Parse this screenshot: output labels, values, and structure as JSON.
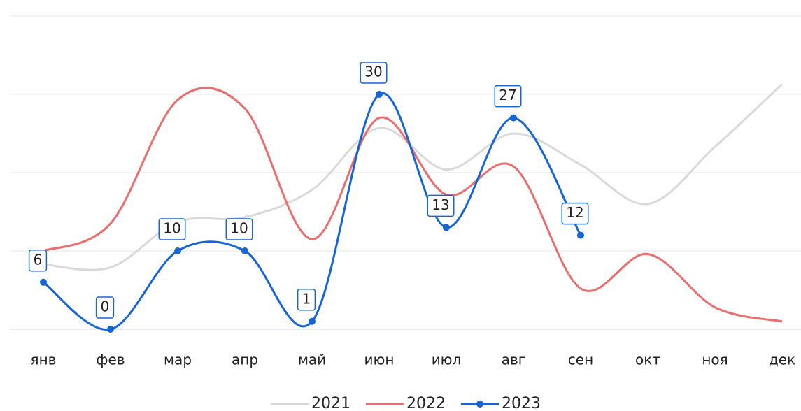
{
  "chart_data": {
    "type": "line",
    "categories": [
      "янв",
      "фев",
      "мар",
      "апр",
      "май",
      "июн",
      "июл",
      "авг",
      "сен",
      "окт",
      "ноя",
      "дек"
    ],
    "series": [
      {
        "name": "2021",
        "color": "#d9d9d9",
        "values": [
          8.3,
          7.9,
          13.7,
          14.3,
          17.8,
          25.7,
          20.4,
          25,
          21,
          16,
          23.3,
          31.3
        ],
        "markers": false,
        "data_labels": false
      },
      {
        "name": "2022",
        "color": "#eb6e6e",
        "values": [
          10,
          13.5,
          29.3,
          28.2,
          11.5,
          27,
          17.2,
          20.8,
          5.2,
          9.6,
          2.8,
          1
        ],
        "markers": false,
        "data_labels": false
      },
      {
        "name": "2023",
        "color": "#1565d8",
        "values": [
          6,
          0,
          10,
          10,
          1,
          30,
          13,
          27,
          12,
          null,
          null,
          null
        ],
        "markers": true,
        "data_labels": true
      }
    ],
    "ylim": [
      0,
      40
    ],
    "yticks": [
      0,
      10,
      20,
      30,
      40
    ],
    "grid": true,
    "smooth": true,
    "legend": "bottom"
  }
}
